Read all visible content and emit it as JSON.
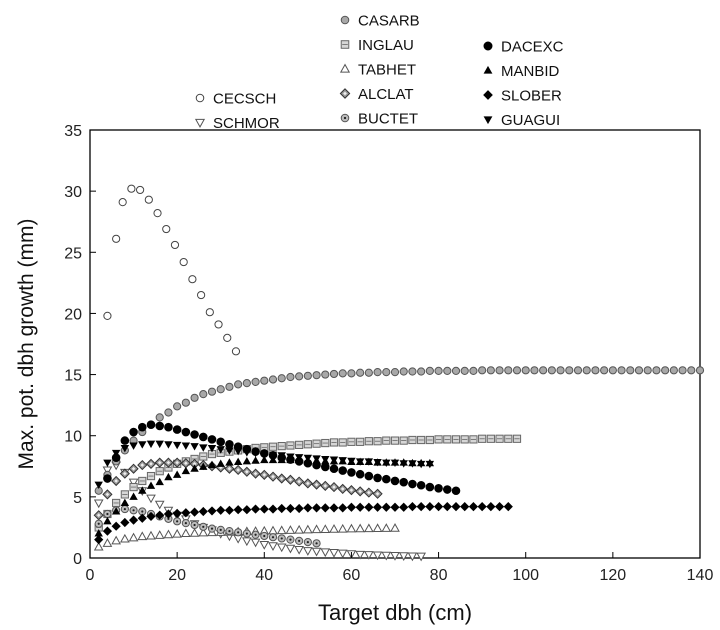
{
  "chart_data": {
    "type": "scatter",
    "xlabel": "Target dbh (cm)",
    "ylabel": "Max. pot. dbh growth (mm)",
    "xlim": [
      0,
      140
    ],
    "ylim": [
      0,
      35
    ],
    "xticks": [
      0,
      20,
      40,
      60,
      80,
      100,
      120,
      140
    ],
    "yticks": [
      0,
      5,
      10,
      15,
      20,
      25,
      30,
      35
    ],
    "grid": false,
    "legend_position": "top",
    "series": [
      {
        "name": "CECSCH",
        "marker": "circle-open",
        "x": [
          4,
          6,
          7.5,
          9.5,
          11.5,
          13.5,
          15.5,
          17.5,
          19.5,
          21.5,
          23.5,
          25.5,
          27.5,
          29.5,
          31.5,
          33.5
        ],
        "y": [
          19.8,
          26.1,
          29.1,
          30.2,
          30.1,
          29.3,
          28.2,
          26.9,
          25.6,
          24.2,
          22.8,
          21.5,
          20.1,
          19.1,
          18.0,
          16.9
        ]
      },
      {
        "name": "SCHMOR",
        "marker": "triangle-down-open",
        "x": [
          2,
          4,
          6,
          8,
          10,
          12,
          14,
          16,
          18,
          20,
          22,
          24,
          26,
          28,
          30,
          32,
          34,
          36,
          38,
          40,
          42,
          44,
          46,
          48,
          50,
          52,
          54,
          56,
          58,
          60,
          62,
          64,
          66,
          68,
          70,
          72,
          74,
          76
        ],
        "y": [
          4.5,
          7.2,
          7.6,
          7.0,
          6.2,
          5.5,
          4.9,
          4.4,
          3.9,
          3.5,
          3.2,
          2.8,
          2.5,
          2.3,
          2.0,
          1.8,
          1.6,
          1.4,
          1.3,
          1.1,
          1.0,
          0.9,
          0.8,
          0.7,
          0.6,
          0.55,
          0.5,
          0.45,
          0.4,
          0.35,
          0.3,
          0.28,
          0.25,
          0.22,
          0.2,
          0.18,
          0.16,
          0.15
        ]
      },
      {
        "name": "CASARB",
        "marker": "circle-gray",
        "x": [
          2,
          4,
          6,
          8,
          10,
          12,
          14,
          16,
          18,
          20,
          22,
          24,
          26,
          28,
          30,
          32,
          34,
          36,
          38,
          40,
          42,
          44,
          46,
          48,
          50,
          52,
          54,
          56,
          58,
          60,
          62,
          64,
          66,
          68,
          70,
          72,
          74,
          76,
          78,
          80,
          82,
          84,
          86,
          88,
          90,
          92,
          94,
          96,
          98,
          100,
          102,
          104,
          106,
          108,
          110,
          112,
          114,
          116,
          118,
          120,
          122,
          124,
          126,
          128,
          130,
          132,
          134,
          136,
          138,
          140
        ],
        "y": [
          5.5,
          6.8,
          7.9,
          8.8,
          9.6,
          10.3,
          10.9,
          11.5,
          11.9,
          12.4,
          12.7,
          13.1,
          13.4,
          13.6,
          13.8,
          14.0,
          14.2,
          14.3,
          14.4,
          14.5,
          14.6,
          14.7,
          14.8,
          14.85,
          14.9,
          14.95,
          15.0,
          15.05,
          15.1,
          15.1,
          15.15,
          15.15,
          15.2,
          15.2,
          15.2,
          15.25,
          15.25,
          15.25,
          15.3,
          15.3,
          15.3,
          15.3,
          15.3,
          15.3,
          15.35,
          15.35,
          15.35,
          15.35,
          15.35,
          15.35,
          15.35,
          15.35,
          15.35,
          15.35,
          15.35,
          15.35,
          15.35,
          15.35,
          15.35,
          15.35,
          15.35,
          15.35,
          15.35,
          15.35,
          15.35,
          15.35,
          15.35,
          15.35,
          15.35,
          15.35
        ]
      },
      {
        "name": "INGLAU",
        "marker": "square-light",
        "x": [
          2,
          4,
          6,
          8,
          10,
          12,
          14,
          16,
          18,
          20,
          22,
          24,
          26,
          28,
          30,
          32,
          34,
          36,
          38,
          40,
          42,
          44,
          46,
          48,
          50,
          52,
          54,
          56,
          58,
          60,
          62,
          64,
          66,
          68,
          70,
          72,
          74,
          76,
          78,
          80,
          82,
          84,
          86,
          88,
          90,
          92,
          94,
          96,
          98
        ],
        "y": [
          2.5,
          3.6,
          4.5,
          5.2,
          5.8,
          6.3,
          6.7,
          7.1,
          7.4,
          7.7,
          7.9,
          8.1,
          8.3,
          8.5,
          8.6,
          8.7,
          8.8,
          8.9,
          9.0,
          9.05,
          9.1,
          9.15,
          9.2,
          9.25,
          9.3,
          9.35,
          9.4,
          9.45,
          9.45,
          9.5,
          9.5,
          9.55,
          9.55,
          9.6,
          9.6,
          9.6,
          9.65,
          9.65,
          9.65,
          9.7,
          9.7,
          9.7,
          9.7,
          9.7,
          9.75,
          9.75,
          9.75,
          9.75,
          9.75
        ]
      },
      {
        "name": "TABHET",
        "marker": "triangle-up-open",
        "x": [
          2,
          4,
          6,
          8,
          10,
          12,
          14,
          16,
          18,
          20,
          22,
          24,
          26,
          28,
          30,
          32,
          34,
          36,
          38,
          40,
          42,
          44,
          46,
          48,
          50,
          52,
          54,
          56,
          58,
          60,
          62,
          64,
          66,
          68,
          70
        ],
        "y": [
          0.9,
          1.2,
          1.4,
          1.55,
          1.65,
          1.75,
          1.8,
          1.85,
          1.9,
          1.95,
          2.0,
          2.02,
          2.05,
          2.07,
          2.1,
          2.12,
          2.14,
          2.16,
          2.18,
          2.2,
          2.22,
          2.24,
          2.26,
          2.28,
          2.3,
          2.32,
          2.33,
          2.35,
          2.36,
          2.38,
          2.39,
          2.4,
          2.41,
          2.42,
          2.43
        ]
      },
      {
        "name": "ALCLAT",
        "marker": "diamond-gray",
        "x": [
          2,
          4,
          6,
          8,
          10,
          12,
          14,
          16,
          18,
          20,
          22,
          24,
          26,
          28,
          30,
          32,
          34,
          36,
          38,
          40,
          42,
          44,
          46,
          48,
          50,
          52,
          54,
          56,
          58,
          60,
          62,
          64,
          66
        ],
        "y": [
          3.5,
          5.2,
          6.3,
          6.9,
          7.3,
          7.6,
          7.7,
          7.8,
          7.8,
          7.8,
          7.75,
          7.7,
          7.6,
          7.5,
          7.4,
          7.3,
          7.2,
          7.05,
          6.9,
          6.8,
          6.65,
          6.5,
          6.4,
          6.25,
          6.1,
          6.0,
          5.9,
          5.8,
          5.65,
          5.55,
          5.45,
          5.35,
          5.25
        ]
      },
      {
        "name": "BUCTET",
        "marker": "circle-dot-gray",
        "x": [
          2,
          4,
          6,
          8,
          10,
          12,
          14,
          16,
          18,
          20,
          22,
          24,
          26,
          28,
          30,
          32,
          34,
          36,
          38,
          40,
          42,
          44,
          46,
          48,
          50,
          52
        ],
        "y": [
          2.8,
          3.6,
          3.9,
          4.0,
          3.9,
          3.8,
          3.6,
          3.4,
          3.2,
          3.0,
          2.85,
          2.7,
          2.55,
          2.4,
          2.3,
          2.2,
          2.1,
          2.0,
          1.9,
          1.8,
          1.7,
          1.6,
          1.5,
          1.4,
          1.3,
          1.2
        ]
      },
      {
        "name": "DACEXC",
        "marker": "circle-filled",
        "x": [
          4,
          6,
          8,
          10,
          12,
          14,
          16,
          18,
          20,
          22,
          24,
          26,
          28,
          30,
          32,
          34,
          36,
          38,
          40,
          42,
          44,
          46,
          48,
          50,
          52,
          54,
          56,
          58,
          60,
          62,
          64,
          66,
          68,
          70,
          72,
          74,
          76,
          78,
          80,
          82,
          84
        ],
        "y": [
          6.5,
          8.2,
          9.6,
          10.3,
          10.7,
          10.9,
          10.8,
          10.7,
          10.5,
          10.3,
          10.1,
          9.9,
          9.7,
          9.5,
          9.3,
          9.1,
          8.9,
          8.7,
          8.55,
          8.4,
          8.2,
          8.05,
          7.9,
          7.75,
          7.6,
          7.45,
          7.3,
          7.15,
          7.0,
          6.85,
          6.7,
          6.55,
          6.45,
          6.3,
          6.2,
          6.05,
          5.95,
          5.8,
          5.7,
          5.6,
          5.5
        ]
      },
      {
        "name": "MANBID",
        "marker": "triangle-up-filled",
        "x": [
          2,
          4,
          6,
          8,
          10,
          12,
          14,
          16,
          18,
          20,
          22,
          24,
          26,
          28,
          30,
          32,
          34,
          36,
          38,
          40,
          42,
          44,
          46,
          48,
          50,
          52,
          54,
          56,
          58,
          60,
          62,
          64,
          66,
          68,
          70,
          72,
          74,
          76,
          78
        ],
        "y": [
          2.0,
          3.0,
          3.8,
          4.5,
          5.0,
          5.5,
          5.9,
          6.2,
          6.6,
          6.8,
          7.1,
          7.3,
          7.45,
          7.6,
          7.7,
          7.8,
          7.85,
          7.9,
          7.95,
          8.0,
          8.0,
          8.0,
          8.0,
          8.0,
          7.95,
          7.95,
          7.9,
          7.9,
          7.9,
          7.85,
          7.85,
          7.85,
          7.8,
          7.8,
          7.8,
          7.8,
          7.75,
          7.75,
          7.75
        ]
      },
      {
        "name": "SLOBER",
        "marker": "diamond-filled",
        "x": [
          2,
          4,
          6,
          8,
          10,
          12,
          14,
          16,
          18,
          20,
          22,
          24,
          26,
          28,
          30,
          32,
          34,
          36,
          38,
          40,
          42,
          44,
          46,
          48,
          50,
          52,
          54,
          56,
          58,
          60,
          62,
          64,
          66,
          68,
          70,
          72,
          74,
          76,
          78,
          80,
          82,
          84,
          86,
          88,
          90,
          92,
          94,
          96
        ],
        "y": [
          1.5,
          2.2,
          2.6,
          2.9,
          3.1,
          3.25,
          3.4,
          3.5,
          3.6,
          3.65,
          3.7,
          3.75,
          3.8,
          3.85,
          3.9,
          3.9,
          3.95,
          3.95,
          4.0,
          4.0,
          4.0,
          4.05,
          4.05,
          4.05,
          4.1,
          4.1,
          4.1,
          4.1,
          4.1,
          4.15,
          4.15,
          4.15,
          4.15,
          4.15,
          4.15,
          4.15,
          4.2,
          4.2,
          4.2,
          4.2,
          4.2,
          4.2,
          4.2,
          4.2,
          4.2,
          4.2,
          4.2,
          4.2
        ]
      },
      {
        "name": "GUAGUI",
        "marker": "triangle-down-filled",
        "x": [
          2,
          4,
          6,
          8,
          10,
          12,
          14,
          16,
          18,
          20,
          22,
          24,
          26,
          28,
          30,
          32,
          34,
          36,
          38,
          40,
          42,
          44,
          46,
          48,
          50,
          52,
          54,
          56,
          58,
          60,
          62,
          64,
          66,
          68,
          70,
          72,
          74,
          76,
          78
        ],
        "y": [
          6.0,
          7.8,
          8.6,
          9.0,
          9.2,
          9.3,
          9.35,
          9.35,
          9.3,
          9.25,
          9.2,
          9.15,
          9.05,
          9.0,
          8.9,
          8.8,
          8.75,
          8.65,
          8.6,
          8.5,
          8.45,
          8.4,
          8.3,
          8.25,
          8.2,
          8.15,
          8.1,
          8.05,
          8.0,
          7.95,
          7.9,
          7.9,
          7.85,
          7.8,
          7.8,
          7.75,
          7.75,
          7.7,
          7.7
        ]
      }
    ]
  }
}
